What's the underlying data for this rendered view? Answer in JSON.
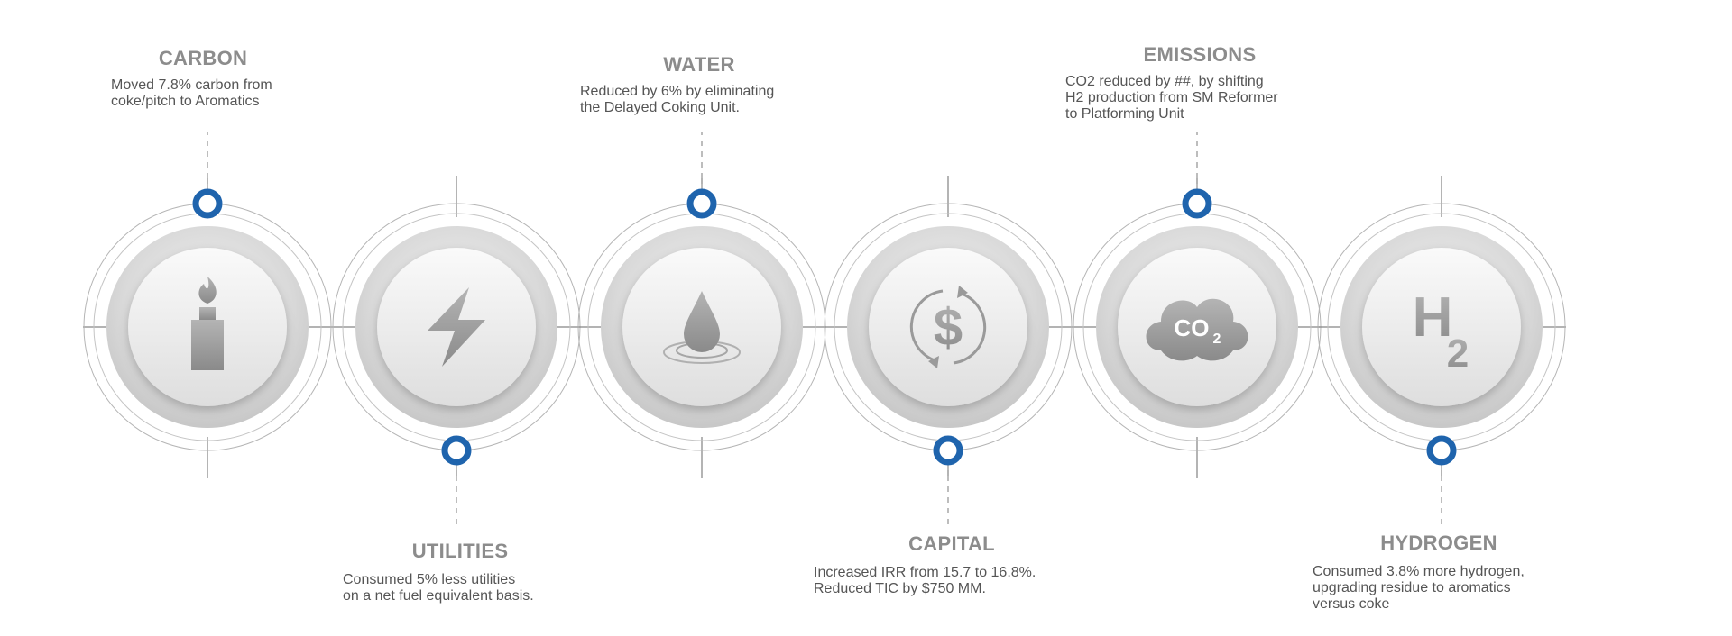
{
  "metrics": [
    {
      "heading": "CARBON",
      "description": "Moved 7.8% carbon from\ncoke/pitch to Aromatics",
      "icon": "flare-stack-icon"
    },
    {
      "heading": "UTILITIES",
      "description": "Consumed 5% less utilities\non a net fuel equivalent basis.",
      "icon": "lightning-bolt-icon"
    },
    {
      "heading": "WATER",
      "description": "Reduced by 6% by eliminating\nthe Delayed Coking Unit.",
      "icon": "water-drop-icon"
    },
    {
      "heading": "CAPITAL",
      "description": "Increased IRR from 15.7 to 16.8%.\nReduced TIC by $750 MM.",
      "icon": "dollar-cycle-icon"
    },
    {
      "heading": "EMISSIONS",
      "description": "CO2 reduced by ##, by shifting\nH2 production from SM Reformer\nto Platforming Unit",
      "icon": "co2-cloud-icon",
      "icon_text": "CO",
      "icon_sub": "2"
    },
    {
      "heading": "HYDROGEN",
      "description": "Consumed 3.8% more hydrogen,\nupgrading residue to aromatics\nversus coke",
      "icon": "h2-icon",
      "icon_text": "H",
      "icon_sub": "2"
    }
  ],
  "colors": {
    "accent": "#1f64ad",
    "heading": "#8c8c8c",
    "text": "#555555",
    "line": "#a8a8a8",
    "disc": "#e6e6e6",
    "icon": "#9a9a9a"
  }
}
